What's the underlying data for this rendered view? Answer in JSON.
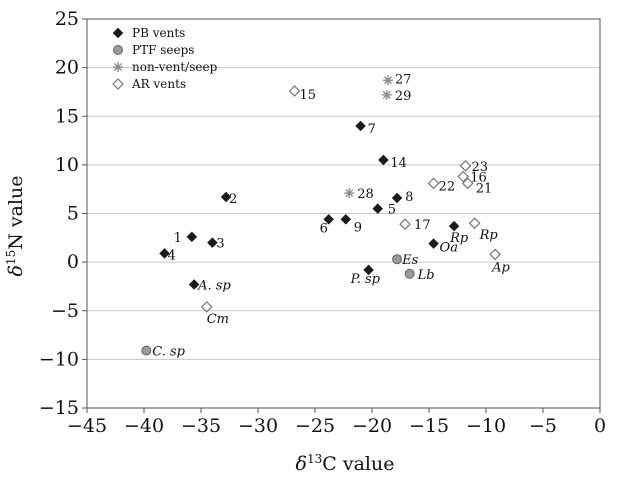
{
  "chart_data": {
    "type": "scatter",
    "xlabel": {
      "delta": "δ",
      "sup": "13",
      "rest": "C value"
    },
    "ylabel": {
      "delta": "δ",
      "sup": "15",
      "rest": "N value"
    },
    "xlim": [
      -45,
      0
    ],
    "ylim": [
      -15,
      25
    ],
    "xticks": [
      "−45",
      "−40",
      "−35",
      "−30",
      "−25",
      "−20",
      "−15",
      "−10",
      "−5",
      "0"
    ],
    "xtick_values": [
      -45,
      -40,
      -35,
      -30,
      -25,
      -20,
      -15,
      -10,
      -5,
      0
    ],
    "yticks": [
      "−15",
      "−10",
      "−5",
      "0",
      "5",
      "10",
      "15",
      "20",
      "25"
    ],
    "ytick_values": [
      -15,
      -10,
      -5,
      0,
      5,
      10,
      15,
      20,
      25
    ],
    "grid": "horizontal",
    "legend_position": "top-left",
    "colors": {
      "pb": "#1a1a1a",
      "ptf": "#9a9a9a",
      "nonvent": "#888888",
      "ar": "#ffffff",
      "ar_stroke": "#777777",
      "grid": "#c8c8c8"
    },
    "series": [
      {
        "name": "PB vents",
        "marker": "filled-diamond",
        "points": [
          {
            "x": -35.8,
            "y": 2.6,
            "label": "1",
            "italic": false
          },
          {
            "x": -32.8,
            "y": 6.7,
            "label": "2",
            "italic": false
          },
          {
            "x": -34.0,
            "y": 2.0,
            "label": "3",
            "italic": false
          },
          {
            "x": -38.2,
            "y": 0.9,
            "label": "4",
            "italic": false
          },
          {
            "x": -19.5,
            "y": 5.5,
            "label": "5",
            "italic": false
          },
          {
            "x": -23.8,
            "y": 4.4,
            "label": "6",
            "italic": false
          },
          {
            "x": -21.0,
            "y": 14.0,
            "label": "7",
            "italic": false
          },
          {
            "x": -17.8,
            "y": 6.6,
            "label": "8",
            "italic": false
          },
          {
            "x": -22.3,
            "y": 4.4,
            "label": "9",
            "italic": false
          },
          {
            "x": -19.0,
            "y": 10.5,
            "label": "14",
            "italic": false
          },
          {
            "x": -35.6,
            "y": -2.3,
            "label": "A. sp",
            "italic": true
          },
          {
            "x": -20.3,
            "y": -0.8,
            "label": "P. sp",
            "italic": true
          },
          {
            "x": -12.8,
            "y": 3.7,
            "label": "Rp",
            "italic": true
          },
          {
            "x": -14.6,
            "y": 1.9,
            "label": "Oa",
            "italic": true
          }
        ]
      },
      {
        "name": "PTF seeps",
        "marker": "grey-circle",
        "points": [
          {
            "x": -39.8,
            "y": -9.1,
            "label": "C. sp",
            "italic": true
          },
          {
            "x": -17.8,
            "y": 0.3,
            "label": "Es",
            "italic": true
          },
          {
            "x": -16.7,
            "y": -1.2,
            "label": "Lb",
            "italic": true
          }
        ]
      },
      {
        "name": "non-vent/seep",
        "marker": "asterisk",
        "points": [
          {
            "x": -18.6,
            "y": 18.7,
            "label": "27",
            "italic": false
          },
          {
            "x": -18.7,
            "y": 17.2,
            "label": "29",
            "italic": false
          },
          {
            "x": -22.0,
            "y": 7.1,
            "label": "28",
            "italic": false
          }
        ]
      },
      {
        "name": "AR vents",
        "marker": "open-diamond",
        "points": [
          {
            "x": -26.8,
            "y": 17.6,
            "label": "15",
            "italic": false
          },
          {
            "x": -17.1,
            "y": 3.9,
            "label": "17",
            "italic": false
          },
          {
            "x": -14.6,
            "y": 8.1,
            "label": "22",
            "italic": false
          },
          {
            "x": -11.8,
            "y": 9.9,
            "label": "23",
            "italic": false
          },
          {
            "x": -12.0,
            "y": 8.8,
            "label": "16",
            "italic": false
          },
          {
            "x": -11.6,
            "y": 8.1,
            "label": "21",
            "italic": false
          },
          {
            "x": -11.0,
            "y": 4.0,
            "label": "Rp",
            "italic": true
          },
          {
            "x": -9.2,
            "y": 0.8,
            "label": "Ap",
            "italic": true
          },
          {
            "x": -34.5,
            "y": -4.6,
            "label": "Cm",
            "italic": true
          }
        ]
      }
    ]
  }
}
